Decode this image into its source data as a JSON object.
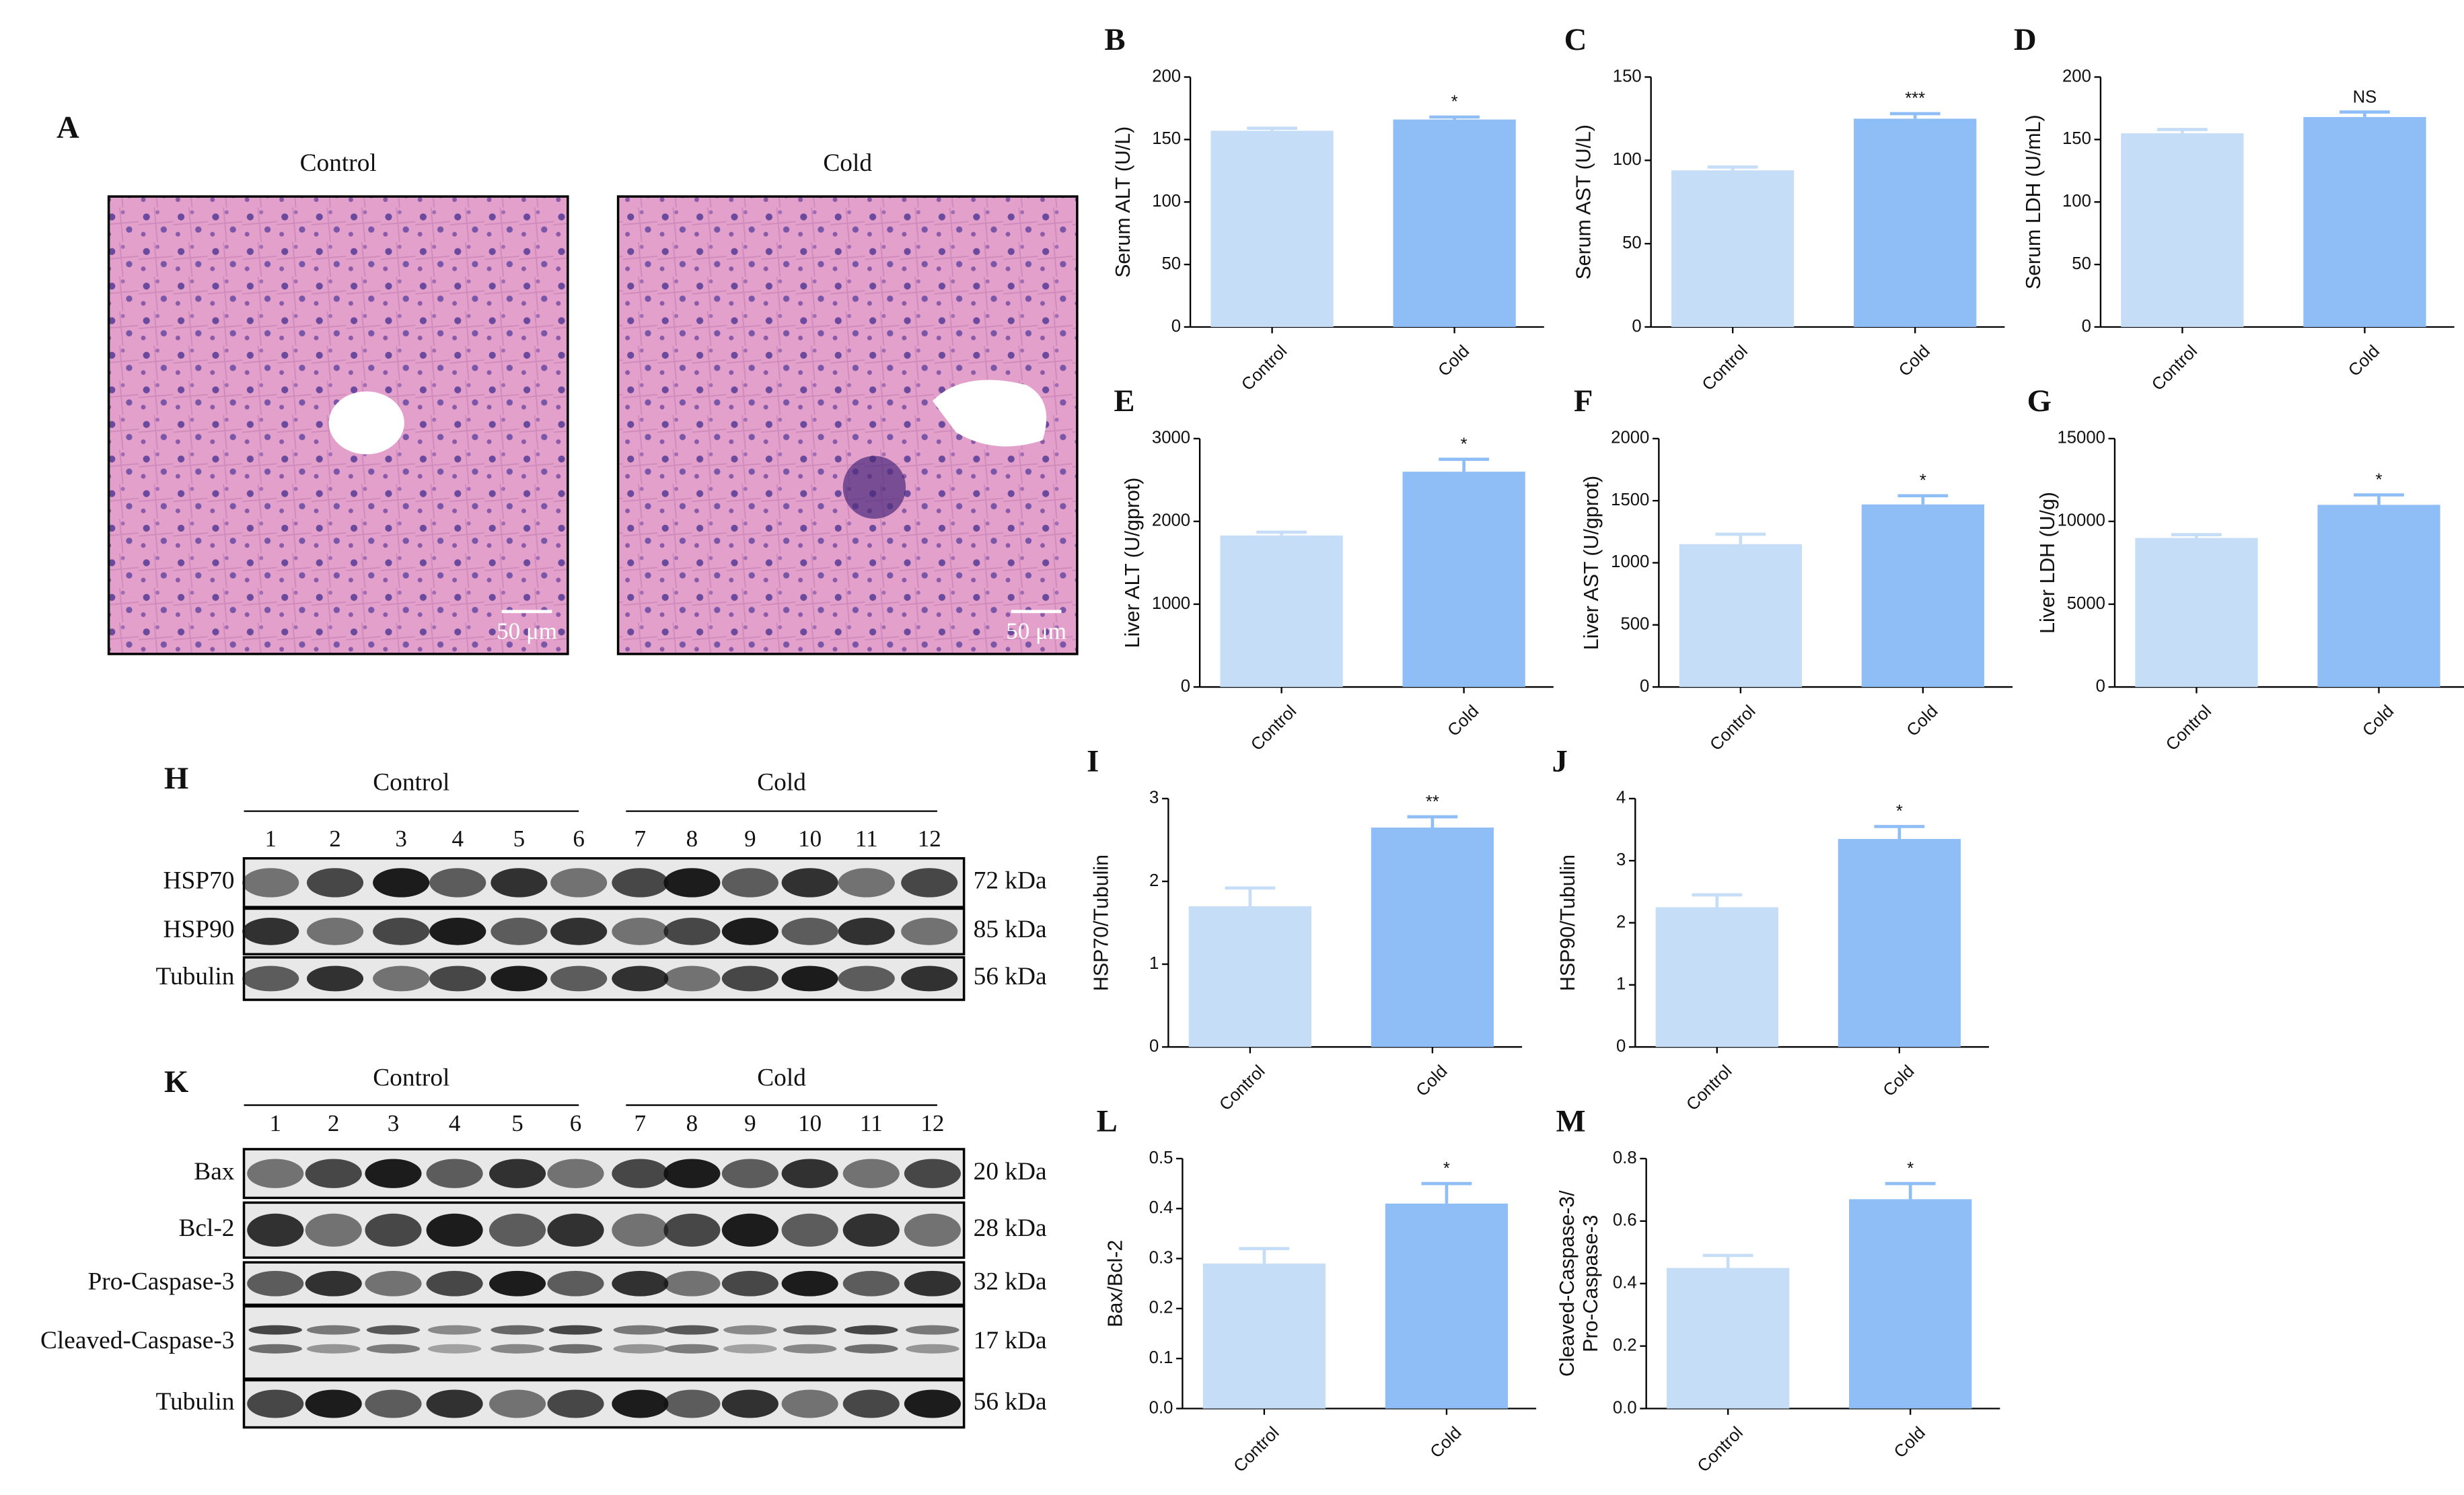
{
  "histology": {
    "panel": "A",
    "images": [
      {
        "title": "Control",
        "scale_bar": "50 μm"
      },
      {
        "title": "Cold",
        "scale_bar": "50 μm"
      }
    ]
  },
  "blots": [
    {
      "panel": "H",
      "groups": [
        "Control",
        "Cold"
      ],
      "lanes": [
        1,
        2,
        3,
        4,
        5,
        6,
        7,
        8,
        9,
        10,
        11,
        12
      ],
      "rows": [
        {
          "label": "HSP70",
          "size": "72 kDa"
        },
        {
          "label": "HSP90",
          "size": "85 kDa"
        },
        {
          "label": "Tubulin",
          "size": "56 kDa"
        }
      ]
    },
    {
      "panel": "K",
      "groups": [
        "Control",
        "Cold"
      ],
      "lanes": [
        1,
        2,
        3,
        4,
        5,
        6,
        7,
        8,
        9,
        10,
        11,
        12
      ],
      "rows": [
        {
          "label": "Bax",
          "size": "20 kDa"
        },
        {
          "label": "Bcl-2",
          "size": "28 kDa"
        },
        {
          "label": "Pro-Caspase-3",
          "size": "32 kDa"
        },
        {
          "label": "Cleaved-Caspase-3",
          "size": "17 kDa"
        },
        {
          "label": "Tubulin",
          "size": "56 kDa"
        }
      ]
    }
  ],
  "chart_data": [
    {
      "type": "bar",
      "panel": "B",
      "y_label": "Serum ALT (U/L)",
      "categories": [
        "Control",
        "Cold"
      ],
      "values": [
        157,
        166
      ],
      "errors": [
        2,
        2
      ],
      "significance": "*",
      "colors": [
        "#c6ddf7",
        "#8fbdf6"
      ],
      "ylim": [
        0,
        200
      ],
      "yticks": [
        0,
        50,
        100,
        150,
        200
      ]
    },
    {
      "type": "bar",
      "panel": "C",
      "y_label": "Serum AST (U/L)",
      "categories": [
        "Control",
        "Cold"
      ],
      "values": [
        94,
        125
      ],
      "errors": [
        2,
        3
      ],
      "significance": "***",
      "colors": [
        "#c6ddf7",
        "#8fbdf6"
      ],
      "ylim": [
        0,
        150
      ],
      "yticks": [
        0,
        50,
        100,
        150
      ]
    },
    {
      "type": "bar",
      "panel": "D",
      "y_label": "Serum LDH (U/mL)",
      "categories": [
        "Control",
        "Cold"
      ],
      "values": [
        155,
        168
      ],
      "errors": [
        3,
        4
      ],
      "significance": "NS",
      "colors": [
        "#c6ddf7",
        "#8fbdf6"
      ],
      "ylim": [
        0,
        200
      ],
      "yticks": [
        0,
        50,
        100,
        150,
        200
      ]
    },
    {
      "type": "bar",
      "panel": "E",
      "y_label": "Liver ALT (U/gprot)",
      "categories": [
        "Control",
        "Cold"
      ],
      "values": [
        1830,
        2600
      ],
      "errors": [
        40,
        150
      ],
      "significance": "*",
      "colors": [
        "#c6ddf7",
        "#8fbdf6"
      ],
      "ylim": [
        0,
        3000
      ],
      "yticks": [
        0,
        1000,
        2000,
        3000
      ]
    },
    {
      "type": "bar",
      "panel": "F",
      "y_label": "Liver AST (U/gprot)",
      "categories": [
        "Control",
        "Cold"
      ],
      "values": [
        1150,
        1470
      ],
      "errors": [
        80,
        70
      ],
      "significance": "*",
      "colors": [
        "#c6ddf7",
        "#8fbdf6"
      ],
      "ylim": [
        0,
        2000
      ],
      "yticks": [
        0,
        500,
        1000,
        1500,
        2000
      ]
    },
    {
      "type": "bar",
      "panel": "G",
      "y_label": "Liver LDH (U/g)",
      "categories": [
        "Control",
        "Cold"
      ],
      "values": [
        9000,
        11000
      ],
      "errors": [
        200,
        600
      ],
      "significance": "*",
      "colors": [
        "#c6ddf7",
        "#8fbdf6"
      ],
      "ylim": [
        0,
        15000
      ],
      "yticks": [
        0,
        5000,
        10000,
        15000
      ]
    },
    {
      "type": "bar",
      "panel": "I",
      "y_label": "HSP70/Tubulin",
      "categories": [
        "Control",
        "Cold"
      ],
      "values": [
        1.7,
        2.65
      ],
      "errors": [
        0.22,
        0.13
      ],
      "significance": "**",
      "colors": [
        "#c6ddf7",
        "#8fbdf6"
      ],
      "ylim": [
        0,
        3
      ],
      "yticks": [
        0,
        1,
        2,
        3
      ]
    },
    {
      "type": "bar",
      "panel": "J",
      "y_label": "HSP90/Tubulin",
      "categories": [
        "Control",
        "Cold"
      ],
      "values": [
        2.25,
        3.35
      ],
      "errors": [
        0.2,
        0.2
      ],
      "significance": "*",
      "colors": [
        "#c6ddf7",
        "#8fbdf6"
      ],
      "ylim": [
        0,
        4
      ],
      "yticks": [
        0,
        1,
        2,
        3,
        4
      ]
    },
    {
      "type": "bar",
      "panel": "L",
      "y_label": "Bax/Bcl-2",
      "categories": [
        "Control",
        "Cold"
      ],
      "values": [
        0.29,
        0.41
      ],
      "errors": [
        0.03,
        0.04
      ],
      "significance": "*",
      "colors": [
        "#c6ddf7",
        "#8fbdf6"
      ],
      "ylim": [
        0,
        0.5
      ],
      "yticks": [
        {
          "value": 0,
          "label": "0.0"
        },
        0.1,
        0.2,
        0.3,
        0.4,
        0.5
      ]
    },
    {
      "type": "bar",
      "panel": "M",
      "y_label": [
        "Cleaved-Caspase-3/",
        "Pro-Caspase-3"
      ],
      "categories": [
        "Control",
        "Cold"
      ],
      "values": [
        0.45,
        0.67
      ],
      "errors": [
        0.04,
        0.05
      ],
      "significance": "*",
      "colors": [
        "#c6ddf7",
        "#8fbdf6"
      ],
      "ylim": [
        0,
        0.8
      ],
      "yticks": [
        {
          "value": 0,
          "label": "0.0"
        },
        0.2,
        0.4,
        0.6,
        0.8
      ]
    }
  ]
}
